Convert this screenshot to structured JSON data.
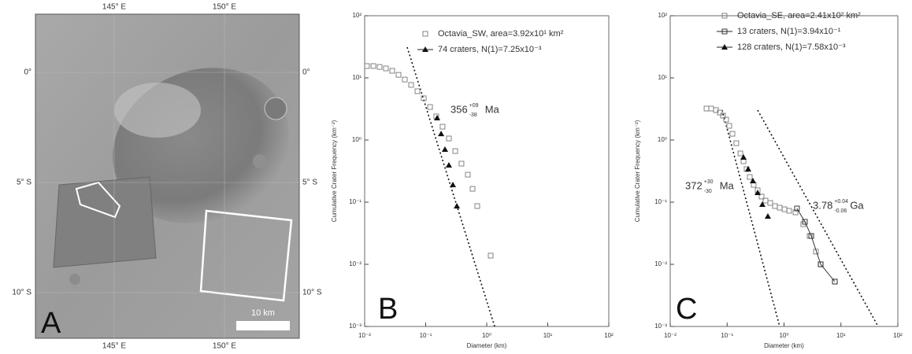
{
  "map": {
    "letter": "A",
    "top_labels": [
      "145° E",
      "150° E"
    ],
    "bottom_labels": [
      "145° E",
      "150° E"
    ],
    "left_labels": [
      "0°",
      "5° S",
      "10° S"
    ],
    "right_labels": [
      "0°",
      "5° S",
      "10° S"
    ],
    "scale_bar": "10 km"
  },
  "chart_data": [
    {
      "type": "scatter",
      "letter": "B",
      "log_scale": true,
      "xlabel": "Diameter (km)",
      "ylabel": "Cumulative Crater Frequency (km⁻²)",
      "xlim": [
        0.01,
        100
      ],
      "ylim": [
        0.001,
        100
      ],
      "xticks": [
        {
          "value": 0.01,
          "label": "10⁻²"
        },
        {
          "value": 0.1,
          "label": "10⁻¹"
        },
        {
          "value": 1,
          "label": "10⁰"
        },
        {
          "value": 10,
          "label": "10¹"
        },
        {
          "value": 100,
          "label": "10²"
        }
      ],
      "yticks": [
        {
          "value": 0.001,
          "label": "10⁻³"
        },
        {
          "value": 0.01,
          "label": "10⁻²"
        },
        {
          "value": 0.1,
          "label": "10⁻¹"
        },
        {
          "value": 1,
          "label": "10⁰"
        },
        {
          "value": 10,
          "label": "10¹"
        },
        {
          "value": 100,
          "label": "10²"
        }
      ],
      "series": [
        {
          "name": "Octavia_SW, area=3.92x10¹ km²",
          "marker": "square",
          "line": false,
          "color": "#777777",
          "x": [
            0.0109,
            0.0139,
            0.0176,
            0.0223,
            0.0283,
            0.0359,
            0.0455,
            0.0577,
            0.0732,
            0.0929,
            0.118,
            0.149,
            0.189,
            0.24,
            0.305,
            0.386,
            0.49,
            0.586,
            0.7,
            1.16
          ],
          "values": [
            15.5,
            15.5,
            15.0,
            14.2,
            13.0,
            11.2,
            9.4,
            7.7,
            6.1,
            4.7,
            3.4,
            2.4,
            1.64,
            1.06,
            0.665,
            0.417,
            0.277,
            0.164,
            0.0865,
            0.0138
          ]
        },
        {
          "name": "74 craters, N(1)=7.25x10⁻³",
          "marker": "triangle",
          "line": false,
          "color": "#111111",
          "x": [
            0.154,
            0.179,
            0.207,
            0.24,
            0.279,
            0.324
          ],
          "values": [
            2.26,
            1.26,
            0.705,
            0.394,
            0.19,
            0.0865
          ]
        }
      ],
      "fit_lines": [
        {
          "x": [
            0.0498,
            1.35
          ],
          "y": [
            31.2,
            0.001
          ]
        }
      ],
      "annotations": [
        {
          "text": "356",
          "sup": "+09",
          "sub": "-38",
          "unit": "Ma"
        }
      ]
    },
    {
      "type": "scatter",
      "letter": "C",
      "log_scale": true,
      "xlabel": "Diameter (km)",
      "ylabel": "Cumulative Crater Frequency (km⁻²)",
      "xlim": [
        0.01,
        100
      ],
      "ylim": [
        0.001,
        100
      ],
      "xticks": [
        {
          "value": 0.01,
          "label": "10⁻²"
        },
        {
          "value": 0.1,
          "label": "10⁻¹"
        },
        {
          "value": 1,
          "label": "10⁰"
        },
        {
          "value": 10,
          "label": "10¹"
        },
        {
          "value": 100,
          "label": "10²"
        }
      ],
      "yticks": [
        {
          "value": 0.001,
          "label": "10⁻³"
        },
        {
          "value": 0.01,
          "label": "10⁻²"
        },
        {
          "value": 0.1,
          "label": "10⁻¹"
        },
        {
          "value": 1,
          "label": "10⁰"
        },
        {
          "value": 10,
          "label": "10¹"
        },
        {
          "value": 100,
          "label": "10²"
        }
      ],
      "series": [
        {
          "name": "Octavia_SE, area=2.41x10² km²",
          "marker": "square",
          "line": false,
          "color": "#777777",
          "x": [
            0.0434,
            0.0525,
            0.0635,
            0.0745,
            0.0846,
            0.0961,
            0.109,
            0.124,
            0.145,
            0.171,
            0.194,
            0.22,
            0.25,
            0.293,
            0.344,
            0.403,
            0.473,
            0.573,
            0.693,
            0.839,
            1.02,
            1.23,
            1.59,
            2.18,
            2.82,
            3.64,
            4.41,
            7.82
          ],
          "values": [
            3.21,
            3.21,
            3.03,
            2.77,
            2.47,
            2.13,
            1.69,
            1.26,
            0.889,
            0.609,
            0.455,
            0.34,
            0.254,
            0.19,
            0.155,
            0.123,
            0.106,
            0.0971,
            0.0865,
            0.0815,
            0.0769,
            0.0726,
            0.0685,
            0.0442,
            0.0286,
            0.016,
            0.01,
            0.00527
          ]
        },
        {
          "name": "13 craters, N(1)=3.94x10⁻¹",
          "marker": "square",
          "line": true,
          "color": "#222222",
          "x": [
            1.69,
            2.33,
            3.01,
            4.41,
            7.82
          ],
          "values": [
            0.0792,
            0.0483,
            0.0286,
            0.01,
            0.00527
          ]
        },
        {
          "name": "128 craters, N(1)=7.58x10⁻³",
          "marker": "triangle",
          "line": false,
          "color": "#111111",
          "x": [
            0.194,
            0.234,
            0.284,
            0.344,
            0.416,
            0.52
          ],
          "values": [
            0.527,
            0.34,
            0.22,
            0.142,
            0.0916,
            0.0592
          ]
        }
      ],
      "fit_lines": [
        {
          "x": [
            0.0818,
            0.839
          ],
          "y": [
            3.03,
            0.001
          ]
        },
        {
          "x": [
            0.344,
            45.1
          ],
          "y": [
            3.03,
            0.001
          ]
        }
      ],
      "annotations": [
        {
          "text": "372",
          "sup": "+30",
          "sub": "-30",
          "unit": "Ma"
        },
        {
          "text": "3.78",
          "sup": "+0.04",
          "sub": "-0.06",
          "unit": "Ga"
        }
      ]
    }
  ]
}
